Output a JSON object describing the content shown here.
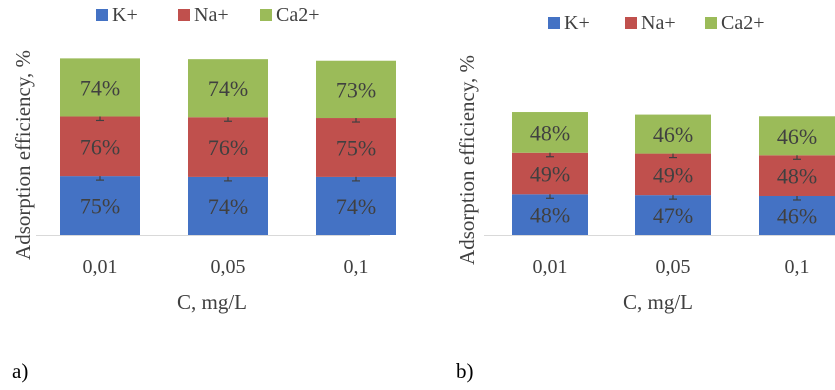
{
  "chart_data": [
    {
      "type": "bar",
      "stacked": true,
      "panel_label": "a)",
      "categories": [
        "0,01",
        "0,05",
        "0,1"
      ],
      "series": [
        {
          "name": "K+",
          "color": "#4472C4",
          "values": [
            75,
            74,
            74
          ],
          "labels": [
            "75%",
            "74%",
            "74%"
          ]
        },
        {
          "name": "Na+",
          "color": "#C0504D",
          "values": [
            76,
            76,
            75
          ],
          "labels": [
            "76%",
            "76%",
            "75%"
          ]
        },
        {
          "name": "Ca2+",
          "color": "#9BBB59",
          "values": [
            74,
            74,
            73
          ],
          "labels": [
            "74%",
            "74%",
            "73%"
          ]
        }
      ],
      "error_bars": true,
      "xlabel": "C, mg/L",
      "ylabel": "Adsorption efficiency, %",
      "ylim": [
        0,
        225
      ],
      "grid": false,
      "legend_position": "top"
    },
    {
      "type": "bar",
      "stacked": true,
      "panel_label": "b)",
      "categories": [
        "0,01",
        "0,05",
        "0,1"
      ],
      "series": [
        {
          "name": "K+",
          "color": "#4472C4",
          "values": [
            48,
            47,
            46
          ],
          "labels": [
            "48%",
            "47%",
            "46%"
          ]
        },
        {
          "name": "Na+",
          "color": "#C0504D",
          "values": [
            49,
            49,
            48
          ],
          "labels": [
            "49%",
            "49%",
            "48%"
          ]
        },
        {
          "name": "Ca2+",
          "color": "#9BBB59",
          "values": [
            48,
            46,
            46
          ],
          "labels": [
            "48%",
            "46%",
            "46%"
          ]
        }
      ],
      "error_bars": true,
      "xlabel": "C, mg/L",
      "ylabel": "Adsorption efficiency, %",
      "ylim": [
        0,
        225
      ],
      "grid": false,
      "legend_position": "top"
    }
  ]
}
